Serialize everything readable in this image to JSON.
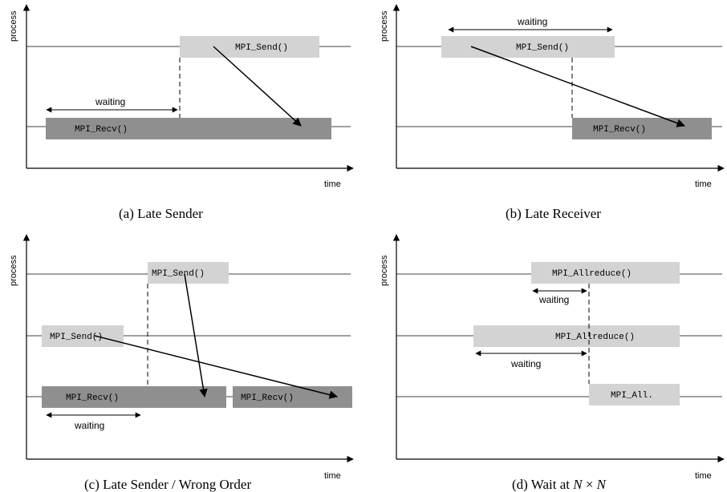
{
  "axis": {
    "y_label": "process",
    "x_label": "time"
  },
  "panels": {
    "a": {
      "caption": "(a)  Late Sender",
      "send": "MPI_Send()",
      "recv": "MPI_Recv()",
      "waiting": "waiting"
    },
    "b": {
      "caption": "(b)  Late Receiver",
      "send": "MPI_Send()",
      "recv": "MPI_Recv()",
      "waiting": "waiting"
    },
    "c": {
      "caption": "(c)  Late Sender / Wrong Order",
      "send_top": "MPI_Send()",
      "send_mid": "MPI_Send()",
      "recv_1": "MPI_Recv()",
      "recv_2": "MPI_Recv()",
      "waiting": "waiting"
    },
    "d": {
      "caption_prefix": "(d)  Wait at ",
      "caption_math_n1": "N",
      "caption_math_x": " × ",
      "caption_math_n2": "N",
      "allreduce_top": "MPI_Allreduce()",
      "allreduce_mid": "MPI_Allreduce()",
      "allreduce_bot": "MPI_All.",
      "waiting_top": "waiting",
      "waiting_mid": "waiting"
    }
  },
  "colors": {
    "light_box": "#d3d3d3",
    "dark_box": "#8f8f8f",
    "line": "#000000"
  }
}
